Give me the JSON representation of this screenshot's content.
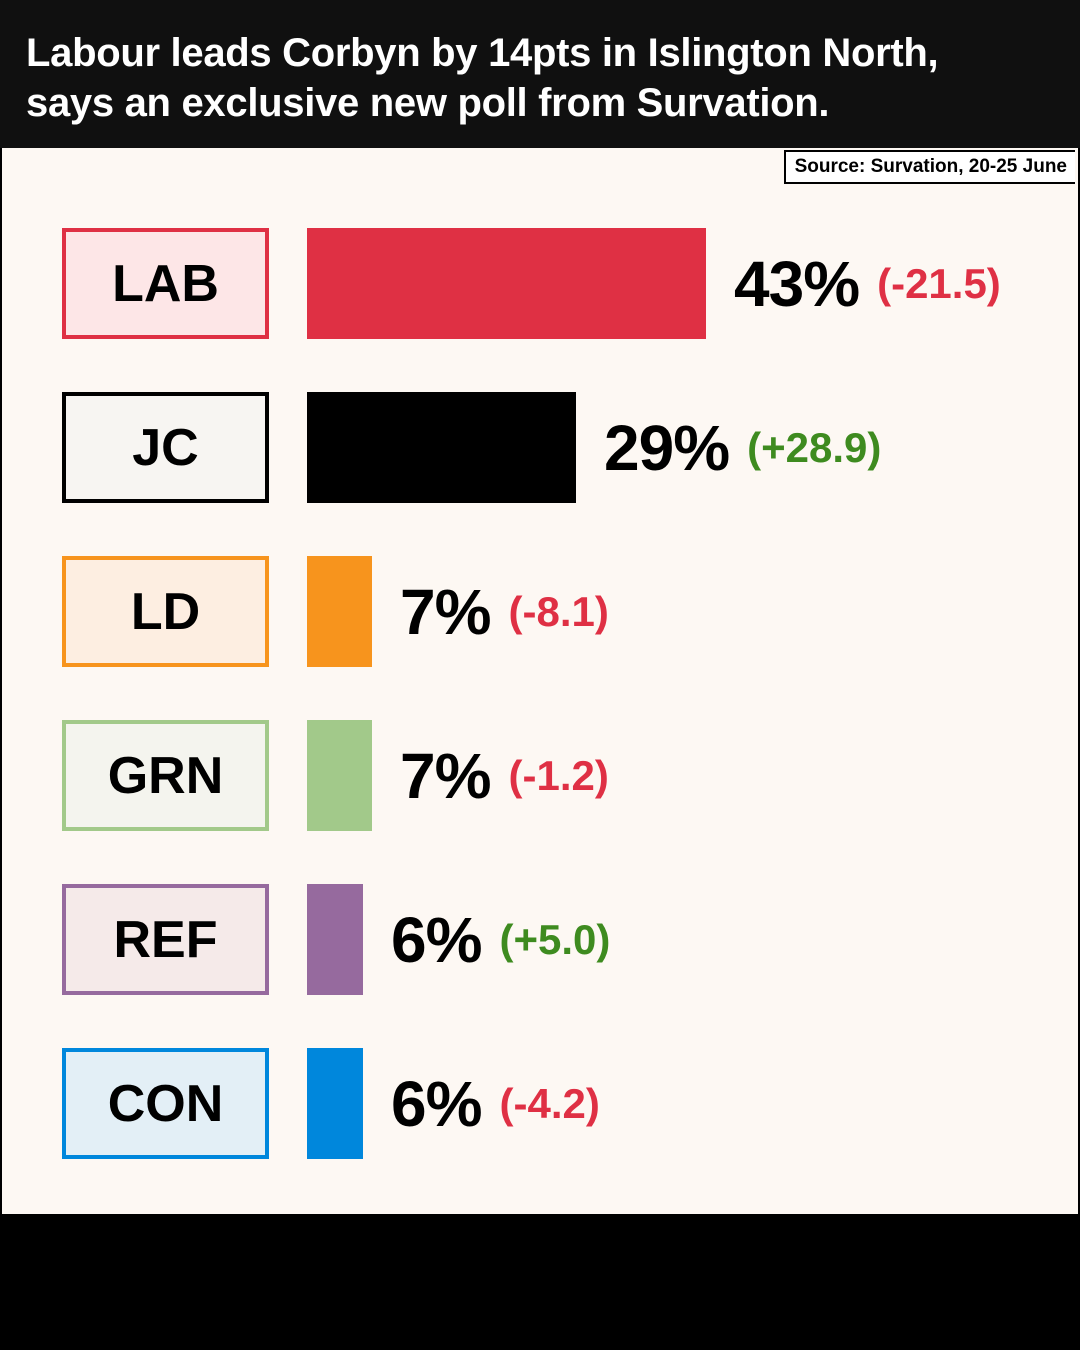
{
  "header": {
    "title_line1": "Labour leads Corbyn by 14pts in Islington North,",
    "title_line2": "says an exclusive new poll from Survation."
  },
  "source": "Source: Survation, 20-25 June",
  "colors": {
    "positive": "#3e8b1f",
    "negative": "#df3044"
  },
  "chart_data": {
    "type": "bar",
    "orientation": "horizontal",
    "unit": "%",
    "categories": [
      "LAB",
      "JC",
      "LD",
      "GRN",
      "REF",
      "CON"
    ],
    "values": [
      43,
      29,
      7,
      7,
      6,
      6
    ],
    "changes": [
      -21.5,
      28.9,
      -8.1,
      -1.2,
      5.0,
      -4.2
    ],
    "value_labels": [
      "43%",
      "29%",
      "7%",
      "7%",
      "6%",
      "6%"
    ],
    "change_labels": [
      "(-21.5)",
      "(+28.9)",
      "(-8.1)",
      "(-1.2)",
      "(+5.0)",
      "(-4.2)"
    ],
    "bar_colors": [
      "#df3044",
      "#000000",
      "#f7941d",
      "#a2c98a",
      "#966a9e",
      "#0087dc"
    ],
    "box_fills": [
      "#fde6e7",
      "#f7f5f2",
      "#fdeee1",
      "#f4f4ee",
      "#f5eae9",
      "#e3eff6"
    ],
    "grid": false,
    "legend": "none"
  }
}
